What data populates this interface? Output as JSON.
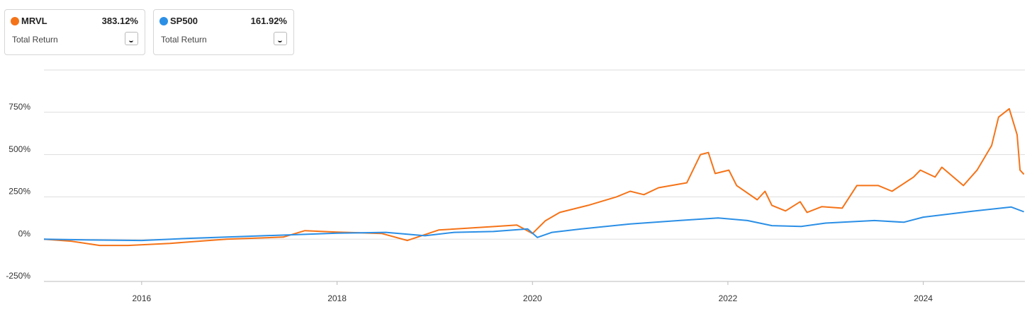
{
  "chart_data": {
    "type": "line",
    "xlim": [
      2015.0,
      2025.04
    ],
    "xticks": [
      2016,
      2018,
      2020,
      2022,
      2024
    ],
    "ylim": [
      -250,
      1000
    ],
    "yticks": [
      {
        "value": -250,
        "label": "-250%"
      },
      {
        "value": 0,
        "label": "0%"
      },
      {
        "value": 250,
        "label": "250%"
      },
      {
        "value": 500,
        "label": "500%"
      },
      {
        "value": 750,
        "label": "750%"
      }
    ],
    "grid": true,
    "series": [
      {
        "name": "MRVL",
        "color": "#f57318",
        "return_label": "383.12%",
        "metric": "Total Return",
        "x": [
          2015.0,
          2015.28,
          2015.57,
          2015.86,
          2016.29,
          2016.87,
          2017.45,
          2017.67,
          2018.0,
          2018.46,
          2018.72,
          2019.04,
          2019.62,
          2019.84,
          2020.0,
          2020.13,
          2020.28,
          2020.57,
          2020.86,
          2021.0,
          2021.14,
          2021.29,
          2021.58,
          2021.72,
          2021.8,
          2021.87,
          2022.01,
          2022.09,
          2022.3,
          2022.38,
          2022.45,
          2022.59,
          2022.74,
          2022.81,
          2022.96,
          2023.17,
          2023.32,
          2023.54,
          2023.68,
          2023.9,
          2023.97,
          2024.12,
          2024.19,
          2024.41,
          2024.55,
          2024.7,
          2024.77,
          2024.88,
          2024.96,
          2024.99,
          2025.03
        ],
        "values": [
          0,
          -12,
          -37,
          -37,
          -25,
          0,
          12,
          50,
          42,
          33,
          -8,
          54,
          75,
          83,
          33,
          108,
          158,
          200,
          250,
          283,
          263,
          304,
          333,
          500,
          512,
          388,
          408,
          317,
          233,
          283,
          200,
          167,
          221,
          158,
          192,
          183,
          317,
          317,
          283,
          367,
          408,
          367,
          425,
          317,
          408,
          554,
          721,
          771,
          617,
          408,
          383.12
        ]
      },
      {
        "name": "SP500",
        "color": "#2b8fe6",
        "return_label": "161.92%",
        "metric": "Total Return",
        "x": [
          2015.0,
          2015.5,
          2016.0,
          2016.5,
          2017.0,
          2017.5,
          2018.0,
          2018.5,
          2018.9,
          2019.2,
          2019.6,
          2019.95,
          2020.05,
          2020.2,
          2020.5,
          2021.0,
          2021.5,
          2021.9,
          2022.2,
          2022.45,
          2022.75,
          2023.0,
          2023.5,
          2023.8,
          2024.0,
          2024.5,
          2024.9,
          2025.03
        ],
        "values": [
          0,
          -5,
          -8,
          5,
          15,
          25,
          35,
          40,
          20,
          40,
          45,
          60,
          10,
          40,
          60,
          90,
          110,
          125,
          110,
          80,
          75,
          95,
          110,
          100,
          130,
          165,
          190,
          161.92
        ]
      }
    ]
  }
}
